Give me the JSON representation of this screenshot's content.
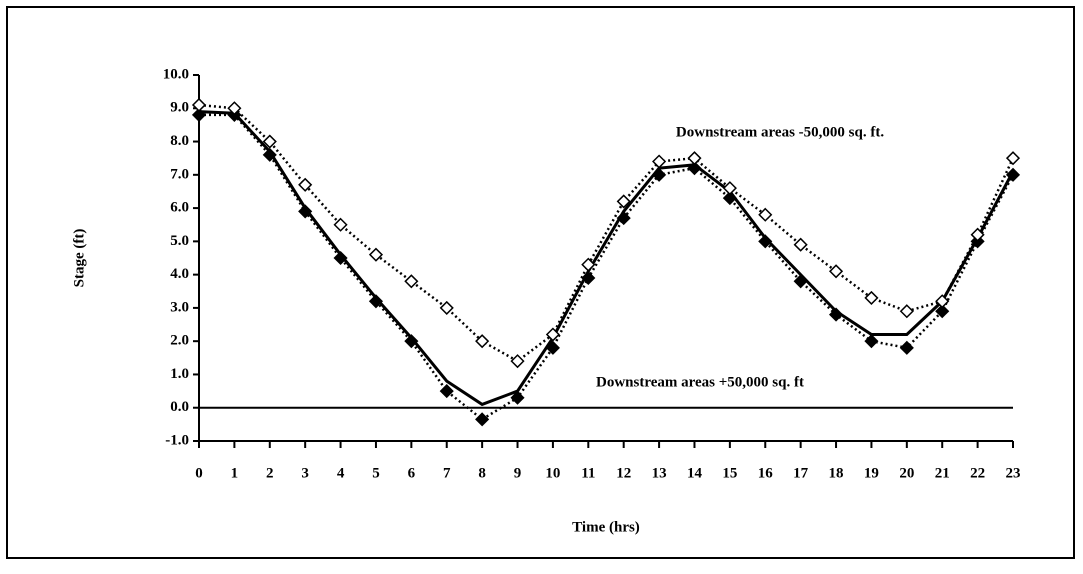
{
  "chart_data": {
    "type": "line",
    "x_label": "Time (hrs)",
    "y_label": "Stage (ft)",
    "x": [
      0,
      1,
      2,
      3,
      4,
      5,
      6,
      7,
      8,
      9,
      10,
      11,
      12,
      13,
      14,
      15,
      16,
      17,
      18,
      19,
      20,
      21,
      22,
      23
    ],
    "xlim": [
      0,
      23
    ],
    "xticks": [
      0,
      1,
      2,
      3,
      4,
      5,
      6,
      7,
      8,
      9,
      10,
      11,
      12,
      13,
      14,
      15,
      16,
      17,
      18,
      19,
      20,
      21,
      22,
      23
    ],
    "ylim": [
      -1,
      10
    ],
    "yticks": [
      {
        "value": -1,
        "label": "-1.0"
      },
      {
        "value": 0,
        "label": "0.0"
      },
      {
        "value": 1,
        "label": "1.0"
      },
      {
        "value": 2,
        "label": "2.0"
      },
      {
        "value": 3,
        "label": "3.0"
      },
      {
        "value": 4,
        "label": "4.0"
      },
      {
        "value": 5,
        "label": "5.0"
      },
      {
        "value": 6,
        "label": "6.0"
      },
      {
        "value": 7,
        "label": "7.0"
      },
      {
        "value": 8,
        "label": "8.0"
      },
      {
        "value": 9,
        "label": "9.0"
      },
      {
        "value": 10,
        "label": "10.0"
      }
    ],
    "grid": false,
    "annotations": [
      "Downstream areas -50,000 sq. ft.",
      "Downstream areas +50,000 sq. ft"
    ],
    "series": [
      {
        "color": "#000000",
        "line_style": "solid",
        "marker": "none",
        "values": [
          8.9,
          8.85,
          7.7,
          6.0,
          4.6,
          3.3,
          2.1,
          0.8,
          0.1,
          0.5,
          2.1,
          4.1,
          5.9,
          7.2,
          7.3,
          6.5,
          5.1,
          4.0,
          2.9,
          2.2,
          2.2,
          3.2,
          5.1,
          7.1
        ]
      },
      {
        "color": "#000000",
        "line_style": "dotted",
        "marker": "filled-diamond",
        "values": [
          8.8,
          8.8,
          7.6,
          5.9,
          4.5,
          3.2,
          2.0,
          0.5,
          -0.35,
          0.3,
          1.8,
          3.9,
          5.7,
          7.0,
          7.2,
          6.3,
          5.0,
          3.8,
          2.8,
          2.0,
          1.8,
          2.9,
          5.0,
          7.0
        ]
      },
      {
        "color": "#000000",
        "line_style": "dotted",
        "marker": "open-diamond",
        "values": [
          9.1,
          9.0,
          8.0,
          6.7,
          5.5,
          4.6,
          3.8,
          3.0,
          2.0,
          1.4,
          2.2,
          4.3,
          6.2,
          7.4,
          7.5,
          6.6,
          5.8,
          4.9,
          4.1,
          3.3,
          2.9,
          3.2,
          5.2,
          7.5
        ]
      }
    ]
  }
}
